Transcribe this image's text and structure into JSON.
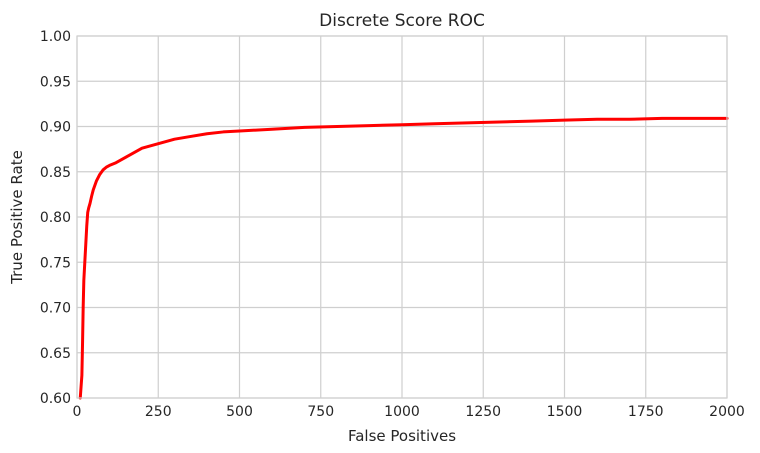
{
  "chart_data": {
    "type": "line",
    "title": "Discrete Score ROC",
    "xlabel": "False Positives",
    "ylabel": "True Positive Rate",
    "xlim": [
      0,
      2000
    ],
    "ylim": [
      0.6,
      1.0
    ],
    "grid": true,
    "x_ticks": [
      0,
      250,
      500,
      750,
      1000,
      1250,
      1500,
      1750,
      2000
    ],
    "x_tick_labels": [
      "0",
      "250",
      "500",
      "750",
      "1000",
      "1250",
      "1500",
      "1750",
      "2000"
    ],
    "y_ticks": [
      0.6,
      0.65,
      0.7,
      0.75,
      0.8,
      0.85,
      0.9,
      0.95,
      1.0
    ],
    "y_tick_labels": [
      "0.60",
      "0.65",
      "0.70",
      "0.75",
      "0.80",
      "0.85",
      "0.90",
      "0.95",
      "1.00"
    ],
    "series": [
      {
        "color": "#ff0000",
        "x": [
          10,
          15,
          17,
          19,
          21,
          24,
          27,
          30,
          33,
          36,
          40,
          45,
          50,
          60,
          70,
          80,
          90,
          100,
          120,
          140,
          160,
          180,
          200,
          250,
          300,
          350,
          400,
          450,
          500,
          600,
          700,
          800,
          900,
          1000,
          1100,
          1200,
          1300,
          1400,
          1500,
          1600,
          1700,
          1800,
          1900,
          2000
        ],
        "y": [
          0.6,
          0.625,
          0.66,
          0.7,
          0.73,
          0.75,
          0.77,
          0.79,
          0.805,
          0.81,
          0.815,
          0.823,
          0.83,
          0.84,
          0.847,
          0.852,
          0.855,
          0.857,
          0.86,
          0.864,
          0.868,
          0.872,
          0.876,
          0.881,
          0.886,
          0.889,
          0.892,
          0.894,
          0.895,
          0.897,
          0.899,
          0.9,
          0.901,
          0.902,
          0.903,
          0.904,
          0.905,
          0.906,
          0.907,
          0.908,
          0.908,
          0.909,
          0.909,
          0.909
        ]
      }
    ]
  }
}
